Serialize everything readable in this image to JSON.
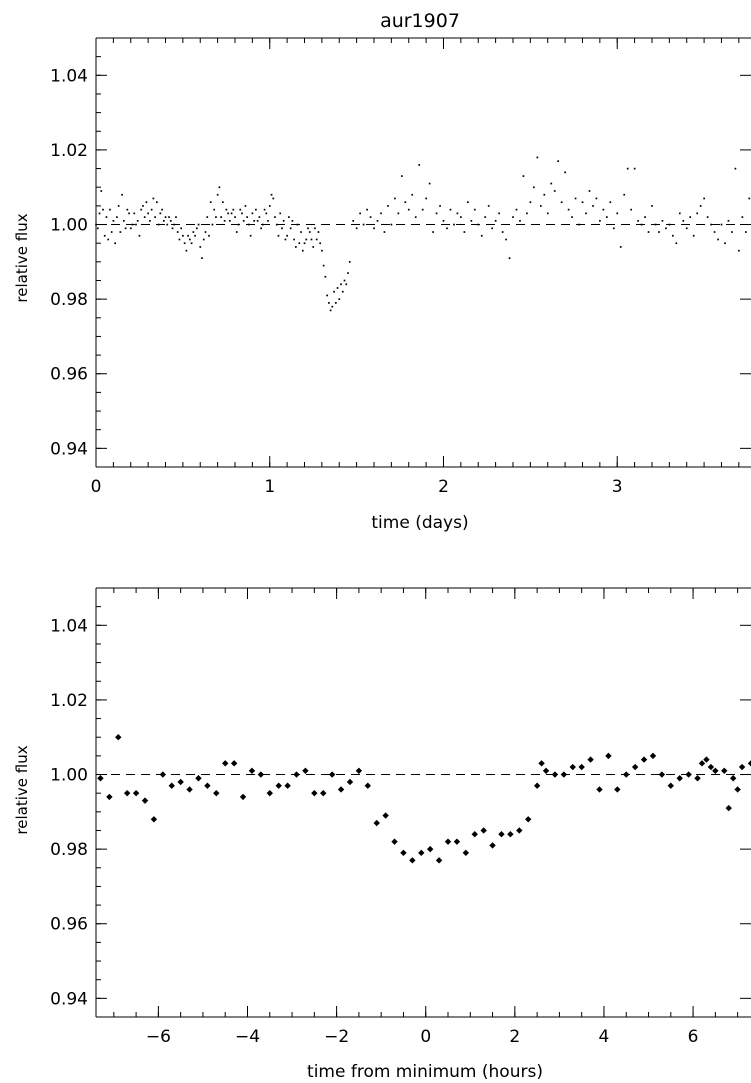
{
  "chart_data": [
    {
      "type": "scatter",
      "title": "aur1907",
      "xlabel": "time (days)",
      "ylabel": "relative flux",
      "xlim": [
        0,
        3.77
      ],
      "ylim": [
        0.935,
        1.05
      ],
      "xticks": [
        0,
        1,
        2,
        3
      ],
      "xtick_labels": [
        "0",
        "1",
        "2",
        "3"
      ],
      "yticks": [
        0.94,
        0.96,
        0.98,
        1.0,
        1.02,
        1.04
      ],
      "ytick_labels": [
        "0.94",
        "0.96",
        "0.98",
        "1.00",
        "1.02",
        "1.04"
      ],
      "grid": false,
      "reference_line": 1.0,
      "marker": "dot",
      "points": [
        [
          0.0,
          1.0
        ],
        [
          0.01,
          0.999
        ],
        [
          0.02,
          1.003
        ],
        [
          0.03,
          1.009
        ],
        [
          0.04,
          1.004
        ],
        [
          0.05,
          0.997
        ],
        [
          0.06,
          1.002
        ],
        [
          0.07,
          0.996
        ],
        [
          0.08,
          1.004
        ],
        [
          0.09,
          0.998
        ],
        [
          0.1,
          1.001
        ],
        [
          0.11,
          0.995
        ],
        [
          0.12,
          1.002
        ],
        [
          0.13,
          1.005
        ],
        [
          0.14,
          0.998
        ],
        [
          0.15,
          1.008
        ],
        [
          0.16,
          1.001
        ],
        [
          0.17,
          0.999
        ],
        [
          0.18,
          1.004
        ],
        [
          0.19,
          1.003
        ],
        [
          0.2,
          0.999
        ],
        [
          0.21,
          1.0
        ],
        [
          0.22,
          1.003
        ],
        [
          0.23,
          1.0
        ],
        [
          0.24,
          1.001
        ],
        [
          0.25,
          0.997
        ],
        [
          0.26,
          1.004
        ],
        [
          0.27,
          1.005
        ],
        [
          0.28,
          1.002
        ],
        [
          0.29,
          1.006
        ],
        [
          0.3,
          1.003
        ],
        [
          0.31,
          1.001
        ],
        [
          0.32,
          1.004
        ],
        [
          0.33,
          1.007
        ],
        [
          0.34,
          1.002
        ],
        [
          0.35,
          1.006
        ],
        [
          0.36,
          1.0
        ],
        [
          0.37,
          1.003
        ],
        [
          0.38,
          1.004
        ],
        [
          0.39,
          1.001
        ],
        [
          0.4,
          1.002
        ],
        [
          0.41,
          1.0
        ],
        [
          0.42,
          1.002
        ],
        [
          0.43,
          1.001
        ],
        [
          0.44,
          0.999
        ],
        [
          0.45,
          1.0
        ],
        [
          0.46,
          1.002
        ],
        [
          0.47,
          0.998
        ],
        [
          0.48,
          0.996
        ],
        [
          0.49,
          0.999
        ],
        [
          0.5,
          0.997
        ],
        [
          0.51,
          0.995
        ],
        [
          0.52,
          0.993
        ],
        [
          0.53,
          0.997
        ],
        [
          0.54,
          0.996
        ],
        [
          0.55,
          0.995
        ],
        [
          0.56,
          0.998
        ],
        [
          0.57,
          0.997
        ],
        [
          0.58,
          0.999
        ],
        [
          0.59,
          1.0
        ],
        [
          0.6,
          0.994
        ],
        [
          0.61,
          0.991
        ],
        [
          0.62,
          0.996
        ],
        [
          0.63,
          0.998
        ],
        [
          0.64,
          1.002
        ],
        [
          0.65,
          0.997
        ],
        [
          0.66,
          1.006
        ],
        [
          0.67,
          1.0
        ],
        [
          0.68,
          1.004
        ],
        [
          0.69,
          1.002
        ],
        [
          0.7,
          1.008
        ],
        [
          0.71,
          1.01
        ],
        [
          0.72,
          1.002
        ],
        [
          0.73,
          1.006
        ],
        [
          0.74,
          1.001
        ],
        [
          0.75,
          1.004
        ],
        [
          0.76,
          1.003
        ],
        [
          0.77,
          1.001
        ],
        [
          0.78,
          1.003
        ],
        [
          0.79,
          1.004
        ],
        [
          0.8,
          1.002
        ],
        [
          0.81,
          0.998
        ],
        [
          0.82,
          1.0
        ],
        [
          0.83,
          1.004
        ],
        [
          0.84,
          1.003
        ],
        [
          0.85,
          1.001
        ],
        [
          0.86,
          1.005
        ],
        [
          0.87,
          1.002
        ],
        [
          0.88,
          1.0
        ],
        [
          0.89,
          0.997
        ],
        [
          0.9,
          1.003
        ],
        [
          0.91,
          1.001
        ],
        [
          0.92,
          1.004
        ],
        [
          0.93,
          1.001
        ],
        [
          0.94,
          1.002
        ],
        [
          0.95,
          0.999
        ],
        [
          0.96,
          1.0
        ],
        [
          0.97,
          1.004
        ],
        [
          0.98,
          1.003
        ],
        [
          0.99,
          1.001
        ],
        [
          1.0,
          1.005
        ],
        [
          1.01,
          1.008
        ],
        [
          1.02,
          1.007
        ],
        [
          1.03,
          1.002
        ],
        [
          1.04,
          1.0
        ],
        [
          1.05,
          0.997
        ],
        [
          1.06,
          1.003
        ],
        [
          1.07,
          0.999
        ],
        [
          1.08,
          1.001
        ],
        [
          1.09,
          0.996
        ],
        [
          1.1,
          0.997
        ],
        [
          1.11,
          1.002
        ],
        [
          1.12,
          0.999
        ],
        [
          1.13,
          1.001
        ],
        [
          1.14,
          0.996
        ],
        [
          1.15,
          0.994
        ],
        [
          1.16,
          1.0
        ],
        [
          1.17,
          0.995
        ],
        [
          1.18,
          0.998
        ],
        [
          1.19,
          0.993
        ],
        [
          1.2,
          0.995
        ],
        [
          1.21,
          0.996
        ],
        [
          1.22,
          0.999
        ],
        [
          1.23,
          0.998
        ],
        [
          1.24,
          0.996
        ],
        [
          1.25,
          0.994
        ],
        [
          1.26,
          0.999
        ],
        [
          1.27,
          0.996
        ],
        [
          1.28,
          0.998
        ],
        [
          1.29,
          0.995
        ],
        [
          1.3,
          0.993
        ],
        [
          1.31,
          0.989
        ],
        [
          1.32,
          0.986
        ],
        [
          1.33,
          0.981
        ],
        [
          1.34,
          0.979
        ],
        [
          1.35,
          0.977
        ],
        [
          1.36,
          0.978
        ],
        [
          1.37,
          0.982
        ],
        [
          1.38,
          0.979
        ],
        [
          1.39,
          0.983
        ],
        [
          1.4,
          0.98
        ],
        [
          1.41,
          0.984
        ],
        [
          1.42,
          0.982
        ],
        [
          1.43,
          0.985
        ],
        [
          1.44,
          0.984
        ],
        [
          1.45,
          0.987
        ],
        [
          1.46,
          0.99
        ],
        [
          1.48,
          1.001
        ],
        [
          1.5,
          0.999
        ],
        [
          1.52,
          1.003
        ],
        [
          1.54,
          1.0
        ],
        [
          1.56,
          1.004
        ],
        [
          1.58,
          1.002
        ],
        [
          1.6,
          0.999
        ],
        [
          1.62,
          1.001
        ],
        [
          1.64,
          1.003
        ],
        [
          1.66,
          0.998
        ],
        [
          1.68,
          1.005
        ],
        [
          1.7,
          1.0
        ],
        [
          1.72,
          1.007
        ],
        [
          1.74,
          1.003
        ],
        [
          1.76,
          1.013
        ],
        [
          1.78,
          1.006
        ],
        [
          1.8,
          1.004
        ],
        [
          1.82,
          1.008
        ],
        [
          1.84,
          1.002
        ],
        [
          1.86,
          1.016
        ],
        [
          1.88,
          1.004
        ],
        [
          1.9,
          1.007
        ],
        [
          1.92,
          1.011
        ],
        [
          1.94,
          0.998
        ],
        [
          1.96,
          1.003
        ],
        [
          1.98,
          1.005
        ],
        [
          2.0,
          1.001
        ],
        [
          2.02,
          0.999
        ],
        [
          2.04,
          1.004
        ],
        [
          2.06,
          1.0
        ],
        [
          2.08,
          1.003
        ],
        [
          2.1,
          1.002
        ],
        [
          2.12,
          0.998
        ],
        [
          2.14,
          1.006
        ],
        [
          2.16,
          1.001
        ],
        [
          2.18,
          1.004
        ],
        [
          2.2,
          1.0
        ],
        [
          2.22,
          0.997
        ],
        [
          2.24,
          1.002
        ],
        [
          2.26,
          1.005
        ],
        [
          2.28,
          0.999
        ],
        [
          2.3,
          1.001
        ],
        [
          2.32,
          1.003
        ],
        [
          2.34,
          0.998
        ],
        [
          2.36,
          0.996
        ],
        [
          2.38,
          0.991
        ],
        [
          2.4,
          1.002
        ],
        [
          2.42,
          1.004
        ],
        [
          2.44,
          1.001
        ],
        [
          2.46,
          1.013
        ],
        [
          2.48,
          1.003
        ],
        [
          2.5,
          1.006
        ],
        [
          2.52,
          1.01
        ],
        [
          2.54,
          1.018
        ],
        [
          2.56,
          1.005
        ],
        [
          2.58,
          1.008
        ],
        [
          2.6,
          1.003
        ],
        [
          2.62,
          1.011
        ],
        [
          2.64,
          1.009
        ],
        [
          2.66,
          1.017
        ],
        [
          2.68,
          1.006
        ],
        [
          2.7,
          1.014
        ],
        [
          2.72,
          1.004
        ],
        [
          2.74,
          1.002
        ],
        [
          2.76,
          1.007
        ],
        [
          2.78,
          1.0
        ],
        [
          2.8,
          1.006
        ],
        [
          2.82,
          1.003
        ],
        [
          2.84,
          1.009
        ],
        [
          2.86,
          1.005
        ],
        [
          2.88,
          1.007
        ],
        [
          2.9,
          1.001
        ],
        [
          2.92,
          1.004
        ],
        [
          2.94,
          1.002
        ],
        [
          2.96,
          1.006
        ],
        [
          2.98,
          0.999
        ],
        [
          3.0,
          1.003
        ],
        [
          3.02,
          0.994
        ],
        [
          3.04,
          1.008
        ],
        [
          3.06,
          1.015
        ],
        [
          3.08,
          1.004
        ],
        [
          3.1,
          1.015
        ],
        [
          3.12,
          1.001
        ],
        [
          3.14,
          1.0
        ],
        [
          3.16,
          1.002
        ],
        [
          3.18,
          0.998
        ],
        [
          3.2,
          1.005
        ],
        [
          3.22,
          1.0
        ],
        [
          3.24,
          0.998
        ],
        [
          3.26,
          1.001
        ],
        [
          3.28,
          0.999
        ],
        [
          3.3,
          1.0
        ],
        [
          3.32,
          0.997
        ],
        [
          3.34,
          0.995
        ],
        [
          3.36,
          1.003
        ],
        [
          3.38,
          1.001
        ],
        [
          3.4,
          0.999
        ],
        [
          3.42,
          1.002
        ],
        [
          3.44,
          0.997
        ],
        [
          3.46,
          1.003
        ],
        [
          3.48,
          1.005
        ],
        [
          3.5,
          1.007
        ],
        [
          3.52,
          1.002
        ],
        [
          3.54,
          1.0
        ],
        [
          3.56,
          0.998
        ],
        [
          3.58,
          0.996
        ],
        [
          3.6,
          1.0
        ],
        [
          3.62,
          0.995
        ],
        [
          3.64,
          1.001
        ],
        [
          3.66,
          0.998
        ],
        [
          3.68,
          1.015
        ],
        [
          3.7,
          0.993
        ],
        [
          3.72,
          1.002
        ],
        [
          3.74,
          0.998
        ],
        [
          3.76,
          1.007
        ]
      ]
    },
    {
      "type": "scatter",
      "title": "",
      "xlabel": "time from minimum (hours)",
      "ylabel": "relative flux",
      "xlim": [
        -7.4,
        7.3
      ],
      "ylim": [
        0.935,
        1.05
      ],
      "xticks": [
        -6,
        -4,
        -2,
        0,
        2,
        4,
        6
      ],
      "xtick_labels": [
        "−6",
        "−4",
        "−2",
        "0",
        "2",
        "4",
        "6"
      ],
      "yticks": [
        0.94,
        0.96,
        0.98,
        1.0,
        1.02,
        1.04
      ],
      "ytick_labels": [
        "0.94",
        "0.96",
        "0.98",
        "1.00",
        "1.02",
        "1.04"
      ],
      "grid": false,
      "reference_line": 1.0,
      "marker": "diamond",
      "points": [
        [
          -7.3,
          0.999
        ],
        [
          -7.1,
          0.994
        ],
        [
          -6.9,
          1.01
        ],
        [
          -6.7,
          0.995
        ],
        [
          -6.5,
          0.995
        ],
        [
          -6.3,
          0.993
        ],
        [
          -6.1,
          0.988
        ],
        [
          -5.9,
          1.0
        ],
        [
          -5.7,
          0.997
        ],
        [
          -5.5,
          0.998
        ],
        [
          -5.3,
          0.996
        ],
        [
          -5.1,
          0.999
        ],
        [
          -4.9,
          0.997
        ],
        [
          -4.7,
          0.995
        ],
        [
          -4.5,
          1.003
        ],
        [
          -4.3,
          1.003
        ],
        [
          -4.1,
          0.994
        ],
        [
          -3.9,
          1.001
        ],
        [
          -3.7,
          1.0
        ],
        [
          -3.5,
          0.995
        ],
        [
          -3.3,
          0.997
        ],
        [
          -3.1,
          0.997
        ],
        [
          -2.9,
          1.0
        ],
        [
          -2.7,
          1.001
        ],
        [
          -2.5,
          0.995
        ],
        [
          -2.3,
          0.995
        ],
        [
          -2.1,
          1.0
        ],
        [
          -1.9,
          0.996
        ],
        [
          -1.7,
          0.998
        ],
        [
          -1.5,
          1.001
        ],
        [
          -1.3,
          0.997
        ],
        [
          -1.1,
          0.987
        ],
        [
          -0.9,
          0.989
        ],
        [
          -0.7,
          0.982
        ],
        [
          -0.5,
          0.979
        ],
        [
          -0.3,
          0.977
        ],
        [
          -0.1,
          0.979
        ],
        [
          0.1,
          0.98
        ],
        [
          0.3,
          0.977
        ],
        [
          0.5,
          0.982
        ],
        [
          0.7,
          0.982
        ],
        [
          0.9,
          0.979
        ],
        [
          1.1,
          0.984
        ],
        [
          1.3,
          0.985
        ],
        [
          1.5,
          0.981
        ],
        [
          1.7,
          0.984
        ],
        [
          1.9,
          0.984
        ],
        [
          2.1,
          0.985
        ],
        [
          2.3,
          0.988
        ],
        [
          2.5,
          0.997
        ],
        [
          2.6,
          1.003
        ],
        [
          2.7,
          1.001
        ],
        [
          2.9,
          1.0
        ],
        [
          3.1,
          1.0
        ],
        [
          3.3,
          1.002
        ],
        [
          3.5,
          1.002
        ],
        [
          3.7,
          1.004
        ],
        [
          3.9,
          0.996
        ],
        [
          4.1,
          1.005
        ],
        [
          4.3,
          0.996
        ],
        [
          4.5,
          1.0
        ],
        [
          4.7,
          1.002
        ],
        [
          4.9,
          1.004
        ],
        [
          5.1,
          1.005
        ],
        [
          5.3,
          1.0
        ],
        [
          5.5,
          0.997
        ],
        [
          5.7,
          0.999
        ],
        [
          5.9,
          1.0
        ],
        [
          6.1,
          0.999
        ],
        [
          6.3,
          1.004
        ],
        [
          6.5,
          1.001
        ],
        [
          6.7,
          1.001
        ],
        [
          6.9,
          0.999
        ],
        [
          7.1,
          1.002
        ],
        [
          7.3,
          1.003
        ],
        [
          6.2,
          1.003
        ],
        [
          6.4,
          1.002
        ],
        [
          6.8,
          0.991
        ],
        [
          7.0,
          0.996
        ]
      ]
    }
  ]
}
